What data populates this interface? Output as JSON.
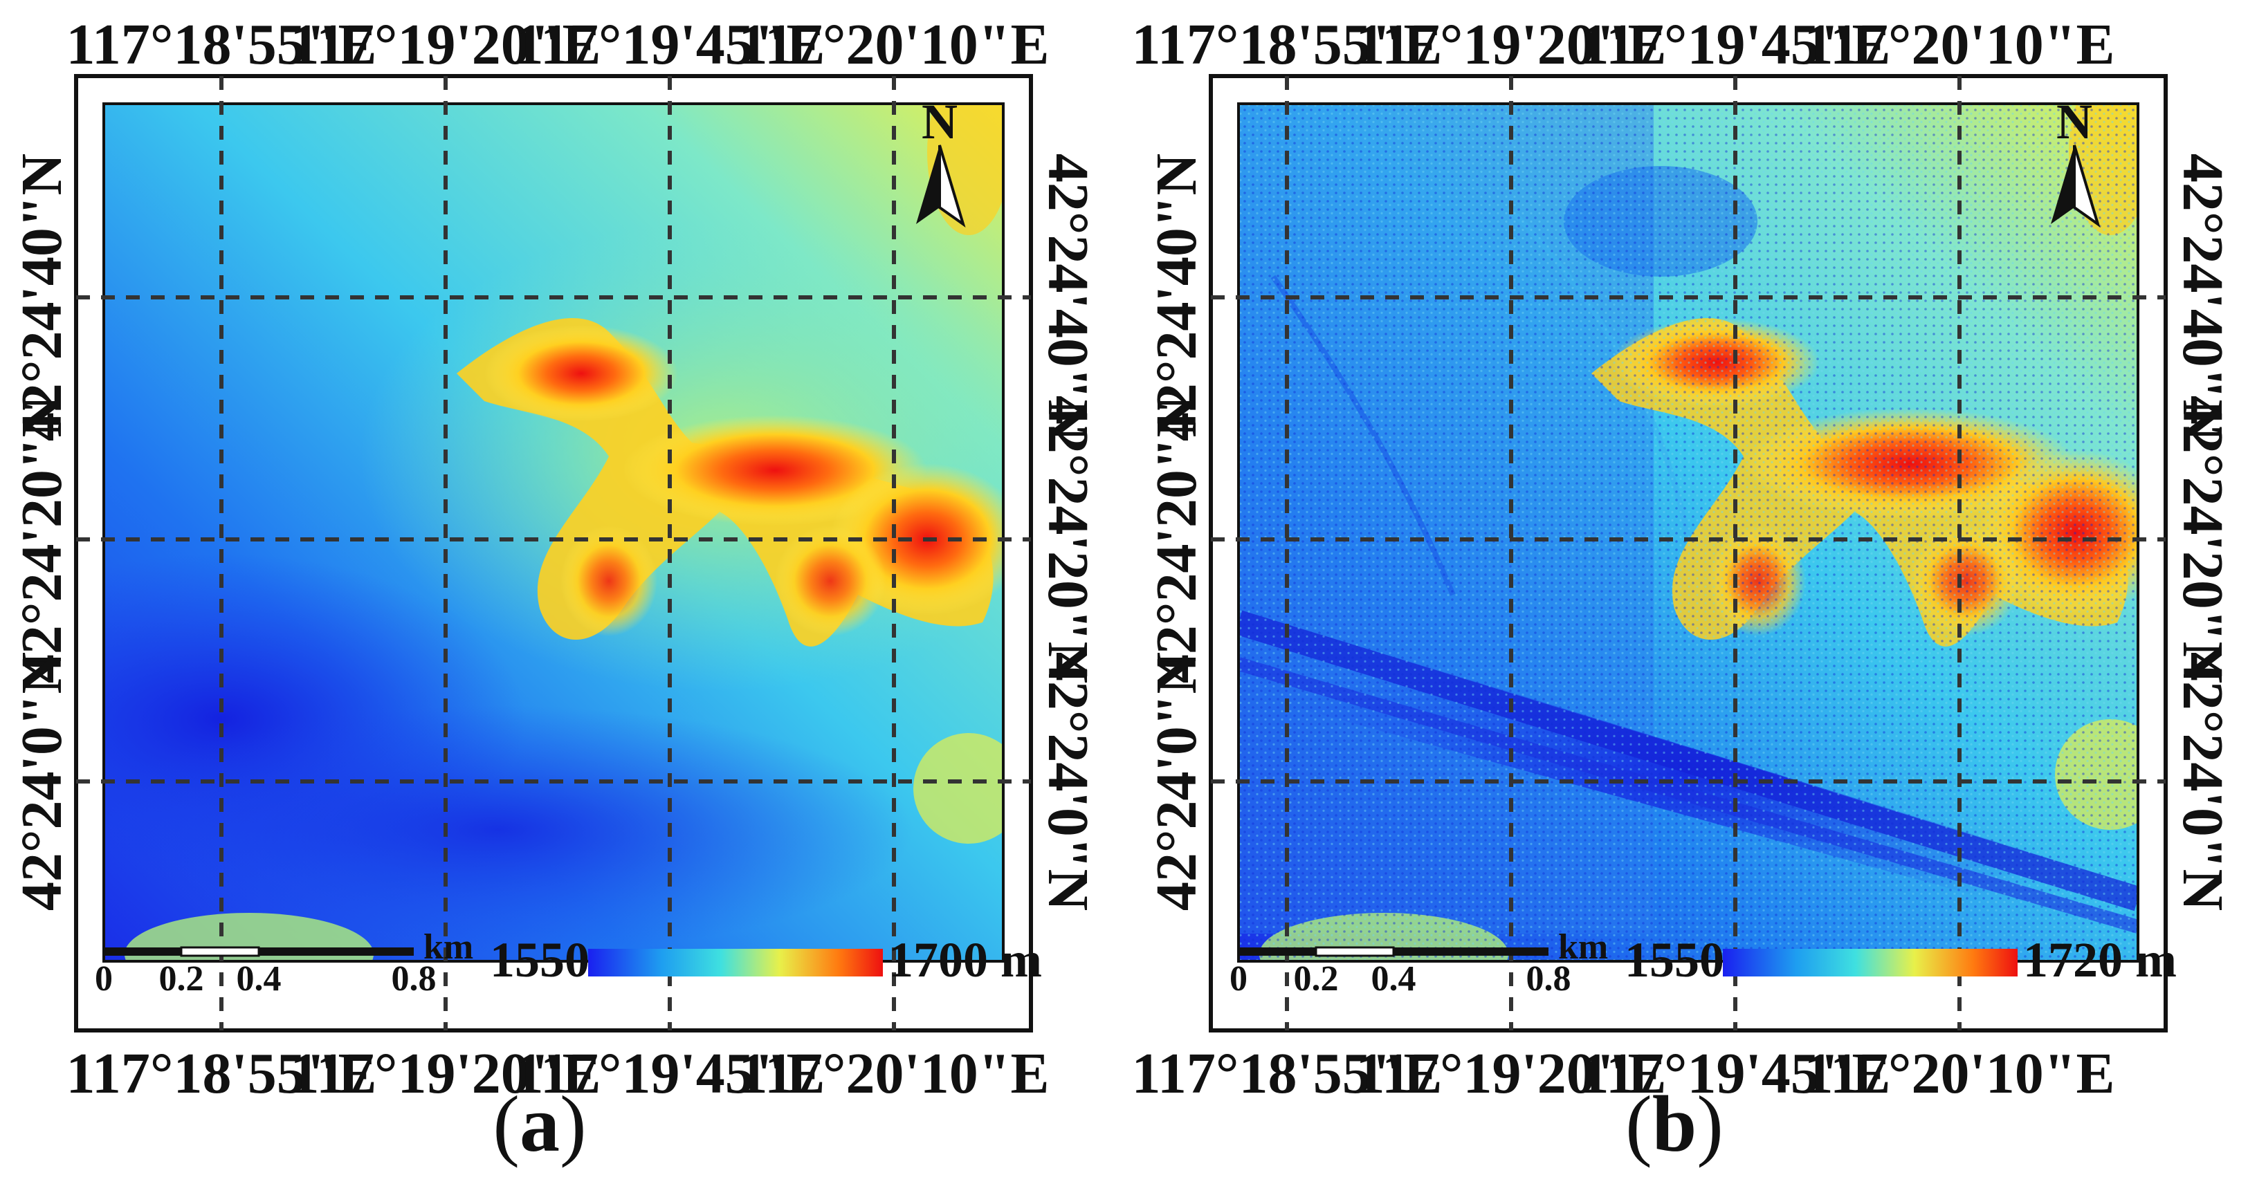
{
  "figure": {
    "panels": [
      {
        "id": "a",
        "caption_open": "(",
        "caption_letter": "a",
        "caption_close": ")",
        "lon_labels": [
          "117°18'55\"E",
          "117°19'20\"E",
          "117°19'45\"E",
          "117°20'10\"E"
        ],
        "lat_labels": [
          "42°24'40\"N",
          "42°24'20\"N",
          "42°24'0\"N"
        ],
        "north_label": "N",
        "scale_unit": "km",
        "scale_ticks": [
          "0",
          "0.2",
          "0.4",
          "0.8"
        ],
        "legend_min": "1550 m",
        "legend_max": "1700 m",
        "elevation_min_m": 1550,
        "elevation_max_m": 1700
      },
      {
        "id": "b",
        "caption_open": "(",
        "caption_letter": "b",
        "caption_close": ")",
        "lon_labels": [
          "117°18'55\"E",
          "117°19'20\"E",
          "117°19'45\"E",
          "117°20'10\"E"
        ],
        "lat_labels": [
          "42°24'40\"N",
          "42°24'20\"N",
          "42°24'0\"N"
        ],
        "north_label": "N",
        "scale_unit": "km",
        "scale_ticks": [
          "0",
          "0.2",
          "0.4",
          "0.8"
        ],
        "legend_min": "1550 m",
        "legend_max": "1720 m",
        "elevation_min_m": 1550,
        "elevation_max_m": 1720
      }
    ],
    "colors": {
      "low": "#1a2cf0",
      "mid_low": "#1e9ef0",
      "mid": "#3fe0e0",
      "mid_high": "#e8f04a",
      "high": "#ff7a10",
      "peak": "#ee1010",
      "grid": "#333333"
    }
  }
}
